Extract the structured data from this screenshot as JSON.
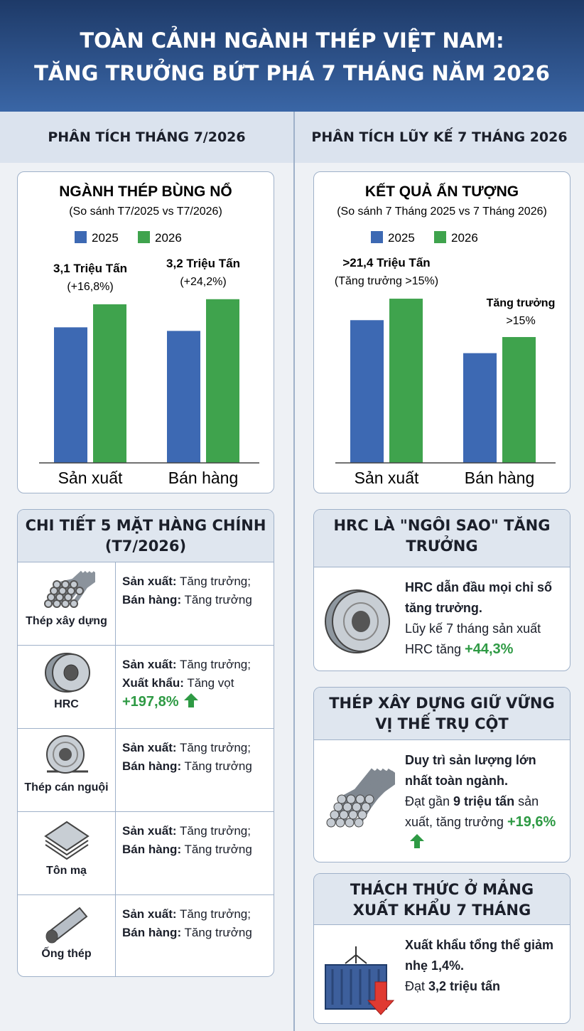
{
  "header": {
    "title_lines": [
      "TOÀN CẢNH NGÀNH THÉP VIỆT NAM:",
      "TĂNG TRƯỞNG BỨT PHÁ 7 THÁNG NĂM 2026"
    ]
  },
  "sections": [
    "PHÂN TÍCH THÁNG 7/2026",
    "PHÂN TÍCH LŨY KẾ 7 THÁNG 2026"
  ],
  "chart_data": [
    {
      "type": "bar",
      "title": "NGÀNH THÉP BÙNG NỔ",
      "subtitle": "(So sánh T7/2025 vs T7/2026)",
      "categories": [
        "Sản xuất",
        "Bán hàng"
      ],
      "series": [
        {
          "name": "2025",
          "color": "#3d69b3",
          "values": [
            2.65,
            2.58
          ]
        },
        {
          "name": "2026",
          "color": "#3fa34d",
          "values": [
            3.1,
            3.2
          ],
          "value_labels": [
            "3,1 Triệu Tấn",
            "3,2 Triệu Tấn"
          ],
          "growth_labels": [
            "(+16,8%)",
            "(+24,2%)"
          ]
        }
      ],
      "ylim": [
        0,
        3.6
      ],
      "legend": "top"
    },
    {
      "type": "bar",
      "title": "KẾT QUẢ ẤN TƯỢNG",
      "subtitle": "(So sánh 7 Tháng 2025 vs 7 Tháng 2026)",
      "categories": [
        "Sản xuất",
        "Bán hàng"
      ],
      "series": [
        {
          "name": "2025",
          "color": "#3d69b3",
          "values": [
            18.6,
            14.3
          ]
        },
        {
          "name": "2026",
          "color": "#3fa34d",
          "values": [
            21.4,
            16.4
          ],
          "value_labels": [
            ">21,4 Triệu Tấn",
            null
          ],
          "growth_labels": [
            "(Tăng trưởng >15%)",
            null
          ]
        }
      ],
      "annotation": {
        "title": "Tăng trưởng",
        "text": ">15%"
      },
      "ylim": [
        0,
        24
      ],
      "legend": "top"
    }
  ],
  "products": {
    "title_lines": [
      "CHI TIẾT 5 MẶT HÀNG CHÍNH",
      "(T7/2026)"
    ],
    "items": [
      {
        "name": "Thép xây dựng",
        "lines": [
          {
            "label": "Sản xuất:",
            "text": " Tăng trưởng;"
          },
          {
            "label": "Bán hàng:",
            "text": " Tăng trưởng"
          }
        ]
      },
      {
        "name": "HRC",
        "lines": [
          {
            "label": "Sản xuất:",
            "text": " Tăng trưởng;"
          },
          {
            "label": "Xuất khẩu:",
            "text": " Tăng vọt"
          }
        ],
        "highlight": "+197,8%"
      },
      {
        "name": "Thép cán nguội",
        "lines": [
          {
            "label": "Sản xuất:",
            "text": " Tăng trưởng;"
          },
          {
            "label": "Bán hàng:",
            "text": " Tăng trưởng"
          }
        ]
      },
      {
        "name": "Tôn mạ",
        "lines": [
          {
            "label": "Sản xuất:",
            "text": " Tăng trưởng;"
          },
          {
            "label": "Bán hàng:",
            "text": " Tăng trưởng"
          }
        ]
      },
      {
        "name": "Ống thép",
        "lines": [
          {
            "label": "Sản xuất:",
            "text": " Tăng trưởng;"
          },
          {
            "label": "Bán hàng:",
            "text": " Tăng trưởng"
          }
        ]
      }
    ]
  },
  "highlights": [
    {
      "title_lines": [
        "HRC LÀ \"NGÔI SAO\" TĂNG",
        "TRƯỞNG"
      ],
      "lead": "HRC dẫn đầu mọi chỉ số tăng trưởng.",
      "body": [
        {
          "text": "Lũy kế 7 tháng sản xuất HRC tăng ",
          "style": "plain"
        },
        {
          "text": "+44,3%",
          "style": "green"
        }
      ]
    },
    {
      "title_lines": [
        "THÉP XÂY DỰNG GIỮ VỮNG",
        "VỊ THẾ TRỤ CỘT"
      ],
      "lead": "Duy trì sản lượng lớn nhất toàn ngành.",
      "body": [
        {
          "text": "Đạt gần ",
          "style": "plain"
        },
        {
          "text": "9 triệu tấn",
          "style": "bold"
        },
        {
          "text": " sản xuất, tăng trưởng ",
          "style": "plain"
        },
        {
          "text": "+19,6%",
          "style": "green",
          "arrow": true
        }
      ]
    },
    {
      "title_lines": [
        "THÁCH THỨC Ở MẢNG",
        "XUẤT KHẨU 7 THÁNG"
      ],
      "lead": "Xuất khẩu tổng thể giảm nhẹ 1,4%.",
      "body": [
        {
          "text": "Đạt ",
          "style": "plain"
        },
        {
          "text": "3,2 triệu tấn",
          "style": "bold"
        }
      ]
    }
  ]
}
